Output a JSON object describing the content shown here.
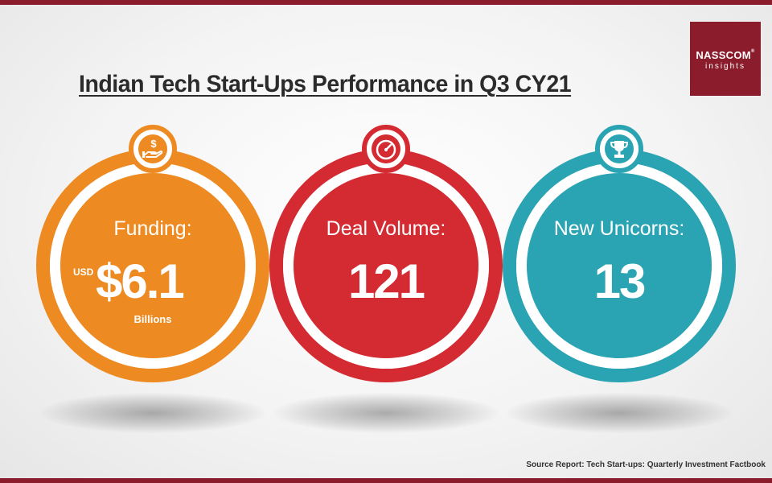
{
  "header": {
    "title": "Indian Tech Start-Ups Performance in Q3 CY21"
  },
  "logo": {
    "name": "NASSCOM",
    "registered": "®",
    "subtitle": "insights"
  },
  "metrics": [
    {
      "label": "Funding:",
      "prefix": "USD",
      "value": "$6.1",
      "unit": "Billions",
      "icon": "money-hand-icon",
      "color": "#ee8a22"
    },
    {
      "label": "Deal Volume:",
      "value": "121",
      "icon": "speedometer-icon",
      "color": "#d42a32"
    },
    {
      "label": "New Unicorns:",
      "value": "13",
      "icon": "trophy-icon",
      "color": "#2aa3b2"
    }
  ],
  "footer": {
    "source": "Source Report: Tech Start-ups: Quarterly Investment Factbook"
  },
  "colors": {
    "brand": "#8b1c2c",
    "title_text": "#2b2b2b"
  }
}
